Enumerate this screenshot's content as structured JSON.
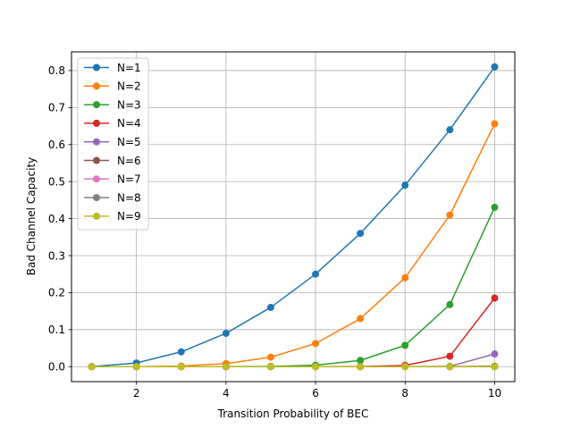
{
  "chart_data": {
    "type": "line",
    "title": "",
    "xlabel": "Transition Probability of BEC",
    "ylabel": "Bad Channel Capacity",
    "x": [
      1,
      2,
      3,
      4,
      5,
      6,
      7,
      8,
      9,
      10
    ],
    "xlim": [
      0.55,
      10.45
    ],
    "ylim": [
      -0.0405,
      0.8505
    ],
    "xticks": [
      2,
      4,
      6,
      8,
      10
    ],
    "yticks": [
      0.0,
      0.1,
      0.2,
      0.3,
      0.4,
      0.5,
      0.6,
      0.7,
      0.8
    ],
    "xtick_labels": [
      "2",
      "4",
      "6",
      "8",
      "10"
    ],
    "ytick_labels": [
      "0.0",
      "0.1",
      "0.2",
      "0.3",
      "0.4",
      "0.5",
      "0.6",
      "0.7",
      "0.8"
    ],
    "grid": true,
    "legend_position": "top-left",
    "series": [
      {
        "name": "N=1",
        "color": "#1f77b4",
        "values": [
          0.0,
          0.01,
          0.04,
          0.09,
          0.16,
          0.25,
          0.36,
          0.49,
          0.64,
          0.81
        ]
      },
      {
        "name": "N=2",
        "color": "#ff7f0e",
        "values": [
          0.0,
          0.0001,
          0.0016,
          0.0081,
          0.0256,
          0.0625,
          0.1296,
          0.2401,
          0.4096,
          0.6561
        ]
      },
      {
        "name": "N=3",
        "color": "#2ca02c",
        "values": [
          0.0,
          0.0,
          0.0,
          0.0001,
          0.0007,
          0.0039,
          0.0168,
          0.0576,
          0.1678,
          0.4305
        ]
      },
      {
        "name": "N=4",
        "color": "#d62728",
        "values": [
          0.0,
          0.0,
          0.0,
          0.0,
          0.0,
          0.0,
          0.0003,
          0.0033,
          0.0281,
          0.1853
        ]
      },
      {
        "name": "N=5",
        "color": "#9467bd",
        "values": [
          0.0,
          0.0,
          0.0,
          0.0,
          0.0,
          0.0,
          0.0,
          0.0,
          0.0008,
          0.0343
        ]
      },
      {
        "name": "N=6",
        "color": "#8c564b",
        "values": [
          0.0,
          0.0,
          0.0,
          0.0,
          0.0,
          0.0,
          0.0,
          0.0,
          0.0,
          0.0012
        ]
      },
      {
        "name": "N=7",
        "color": "#e377c2",
        "values": [
          0.0,
          0.0,
          0.0,
          0.0,
          0.0,
          0.0,
          0.0,
          0.0,
          0.0,
          0.0
        ]
      },
      {
        "name": "N=8",
        "color": "#7f7f7f",
        "values": [
          0.0,
          0.0,
          0.0,
          0.0,
          0.0,
          0.0,
          0.0,
          0.0,
          0.0,
          0.0
        ]
      },
      {
        "name": "N=9",
        "color": "#bcbd22",
        "values": [
          0.0,
          0.0,
          0.0,
          0.0,
          0.0,
          0.0,
          0.0,
          0.0,
          0.0,
          0.0
        ]
      }
    ]
  }
}
